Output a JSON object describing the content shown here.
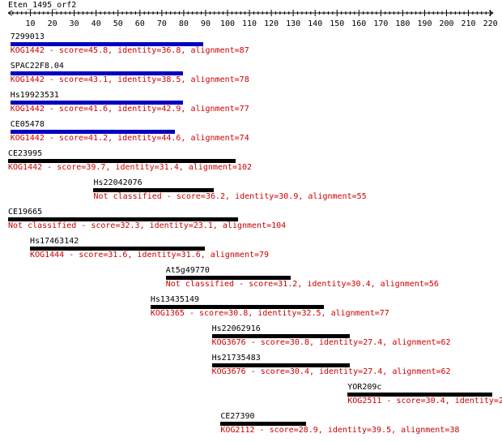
{
  "query": {
    "name": "Eten_1495_orf2"
  },
  "ruler": {
    "min": 0,
    "max": 220,
    "step_major": 10,
    "tick_labels": [
      "10",
      "20",
      "30",
      "40",
      "50",
      "60",
      "70",
      "80",
      "90",
      "100",
      "110",
      "120",
      "130",
      "140",
      "150",
      "160",
      "170",
      "180",
      "190",
      "200",
      "210",
      "220"
    ]
  },
  "colors": {
    "bar_blue": "#0000bf",
    "bar_black": "#000000",
    "annotation_red": "#cc0000"
  },
  "hits": [
    {
      "id": "7299013",
      "start": 1,
      "end": 89,
      "color": "blue",
      "annotation": "KOG1442 - score=45.8, identity=36.8, alignment=87"
    },
    {
      "id": "SPAC22F8.04",
      "start": 1,
      "end": 80,
      "color": "blue",
      "annotation": "KOG1442 - score=43.1, identity=38.5, alignment=78"
    },
    {
      "id": "Hs19923531",
      "start": 1,
      "end": 80,
      "color": "blue",
      "annotation": "KOG1442 - score=41.6, identity=42.9, alignment=77"
    },
    {
      "id": "CE05478",
      "start": 1,
      "end": 76,
      "color": "blue",
      "annotation": "KOG1442 - score=41.2, identity=44.6, alignment=74"
    },
    {
      "id": "CE23995",
      "start": 0,
      "end": 104,
      "color": "black",
      "annotation": "KOG1442 - score=39.7, identity=31.4, alignment=102"
    },
    {
      "id": "Hs22042076",
      "start": 39,
      "end": 94,
      "color": "black",
      "annotation": "Not classified - score=36.2, identity=30.9, alignment=55"
    },
    {
      "id": "CE19665",
      "start": 0,
      "end": 105,
      "color": "black",
      "annotation": "Not classified - score=32.3, identity=23.1, alignment=104"
    },
    {
      "id": "Hs17463142",
      "start": 10,
      "end": 90,
      "color": "black",
      "annotation": "KOG1444 - score=31.6, identity=31.6, alignment=79"
    },
    {
      "id": "At5g49770",
      "start": 72,
      "end": 129,
      "color": "black",
      "annotation": "Not classified - score=31.2, identity=30.4, alignment=56"
    },
    {
      "id": "Hs13435149",
      "start": 65,
      "end": 144,
      "color": "black",
      "annotation": "KOG1365 - score=30.8, identity=32.5, alignment=77"
    },
    {
      "id": "Hs22062916",
      "start": 93,
      "end": 156,
      "color": "black",
      "annotation": "KOG3676 - score=30.8, identity=27.4, alignment=62"
    },
    {
      "id": "Hs21735483",
      "start": 93,
      "end": 156,
      "color": "black",
      "annotation": "KOG3676 - score=30.4, identity=27.4, alignment=62"
    },
    {
      "id": "YOR209c",
      "start": 155,
      "end": 221,
      "color": "black",
      "annotation": "KOG2511 - score=30.4, identity=2"
    },
    {
      "id": "CE27390",
      "start": 97,
      "end": 136,
      "color": "black",
      "annotation": "KOG2112 - score=28.9, identity=39.5, alignment=38"
    }
  ]
}
